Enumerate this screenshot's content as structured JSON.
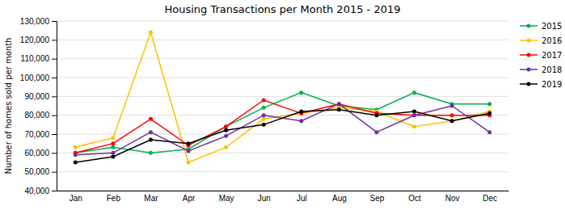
{
  "chart_data": {
    "type": "line",
    "title": "Housing Transactions per Month 2015 - 2019",
    "y_label": "Number of homes sold per month",
    "categories": [
      "Jan",
      "Feb",
      "Mar",
      "Apr",
      "May",
      "Jun",
      "Jul",
      "Aug",
      "Sep",
      "Oct",
      "Nov",
      "Dec"
    ],
    "series": [
      {
        "name": "2015",
        "color": "#00b050",
        "values": [
          60000,
          63000,
          60000,
          62000,
          74000,
          84000,
          92000,
          85000,
          83000,
          92000,
          86000,
          86000
        ]
      },
      {
        "name": "2016",
        "color": "#ffc000",
        "values": [
          63000,
          68000,
          124000,
          55000,
          63000,
          78000,
          81000,
          84000,
          82000,
          74000,
          77000,
          82000
        ]
      },
      {
        "name": "2017",
        "color": "#ff0000",
        "values": [
          60000,
          65000,
          78000,
          64000,
          74000,
          88000,
          81000,
          86000,
          81000,
          80000,
          80000,
          80000
        ]
      },
      {
        "name": "2018",
        "color": "#7030a0",
        "values": [
          59000,
          60000,
          71000,
          61000,
          69000,
          80000,
          77000,
          86000,
          71000,
          80000,
          85000,
          71000
        ]
      },
      {
        "name": "2019",
        "color": "#000000",
        "values": [
          55000,
          58000,
          67000,
          65000,
          72000,
          75000,
          82000,
          83000,
          80000,
          82000,
          77000,
          81000
        ]
      }
    ],
    "ylim": [
      40000,
      130000
    ],
    "yticks": [
      {
        "value": 40000,
        "label": "40,000"
      },
      {
        "value": 50000,
        "label": "50,000"
      },
      {
        "value": 60000,
        "label": "60,000"
      },
      {
        "value": 70000,
        "label": "70,000"
      },
      {
        "value": 80000,
        "label": "80,000"
      },
      {
        "value": 90000,
        "label": "90,000"
      },
      {
        "value": 100000,
        "label": "100,000"
      },
      {
        "value": 110000,
        "label": "110,000"
      },
      {
        "value": 120000,
        "label": "120,000"
      },
      {
        "value": 130000,
        "label": "130,000"
      }
    ],
    "marker": "circle",
    "grid": true,
    "legend": "right"
  }
}
